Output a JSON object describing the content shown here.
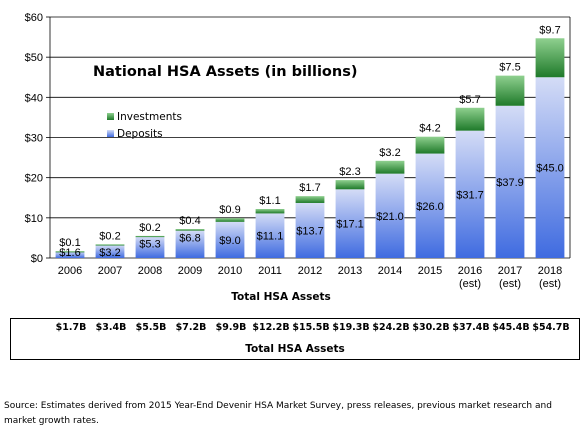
{
  "chart_data": {
    "type": "bar",
    "stacked": true,
    "title": "National HSA Assets (in billions)",
    "xlabel": "Total HSA Assets",
    "ylabel": "",
    "ylim": [
      0,
      60
    ],
    "yticks": [
      "$0",
      "$10",
      "$20",
      "$30",
      "$40",
      "$50",
      "$60"
    ],
    "legend_position": "left",
    "categories": [
      "2006",
      "2007",
      "2008",
      "2009",
      "2010",
      "2011",
      "2012",
      "2013",
      "2014",
      "2015",
      "2016",
      "2017",
      "2018"
    ],
    "category_sublabels": [
      "",
      "",
      "",
      "",
      "",
      "",
      "",
      "",
      "",
      "",
      "(est)",
      "(est)",
      "(est)"
    ],
    "series": [
      {
        "name": "Deposits",
        "color": "#6f8fe6",
        "values": [
          1.6,
          3.2,
          5.3,
          6.8,
          9.0,
          11.1,
          13.7,
          17.1,
          21.0,
          26.0,
          31.7,
          37.9,
          45.0
        ],
        "labels": [
          "$1.6",
          "$3.2",
          "$5.3",
          "$6.8",
          "$9.0",
          "$11.1",
          "$13.7",
          "$17.1",
          "$21.0",
          "$26.0",
          "$31.7",
          "$37.9",
          "$45.0"
        ]
      },
      {
        "name": "Investments",
        "color": "#3f9a3f",
        "values": [
          0.1,
          0.2,
          0.2,
          0.4,
          0.9,
          1.1,
          1.7,
          2.3,
          3.2,
          4.2,
          5.7,
          7.5,
          9.7
        ],
        "labels": [
          "$0.1",
          "$0.2",
          "$0.2",
          "$0.4",
          "$0.9",
          "$1.1",
          "$1.7",
          "$2.3",
          "$3.2",
          "$4.2",
          "$5.7",
          "$7.5",
          "$9.7"
        ]
      }
    ],
    "colors": {
      "deposits": "#6f8fe6",
      "investments": "#3f9a3f",
      "grid": "#000000"
    }
  },
  "summary": {
    "totals": [
      "$1.7B",
      "$3.4B",
      "$5.5B",
      "$7.2B",
      "$9.9B",
      "$12.2B",
      "$15.5B",
      "$19.3B",
      "$24.2B",
      "$30.2B",
      "$37.4B",
      "$45.4B",
      "$54.7B"
    ],
    "title": "Total HSA Assets"
  },
  "source_note": "Source: Estimates derived from 2015 Year-End Devenir HSA Market Survey, press releases, previous market research and market growth rates."
}
